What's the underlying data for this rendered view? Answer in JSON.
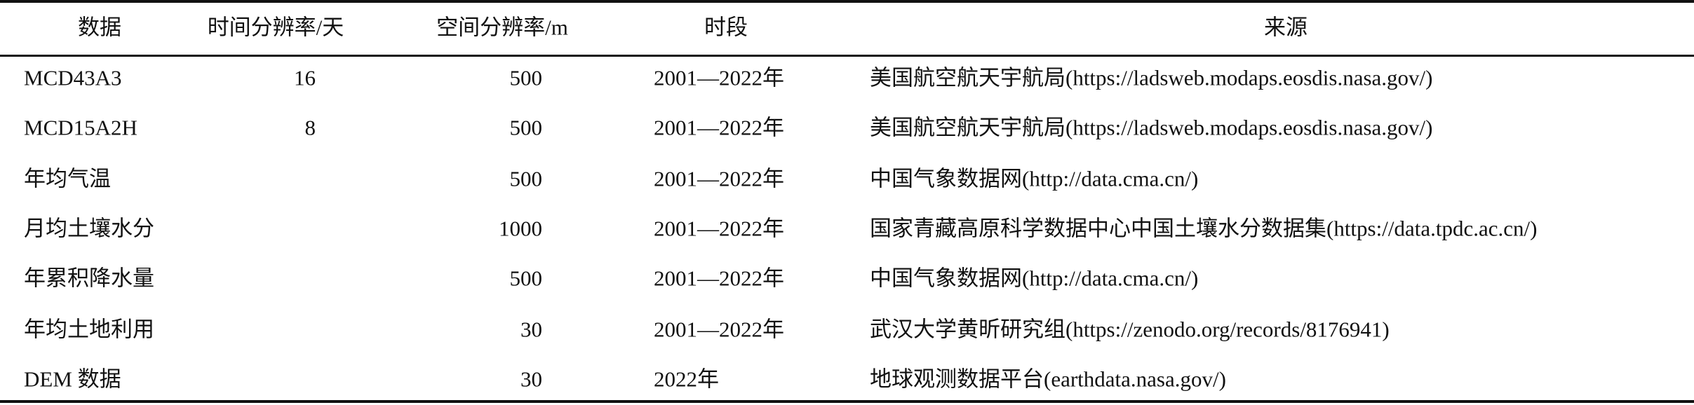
{
  "headers": [
    "数据",
    "时间分辨率/天",
    "空间分辨率/m",
    "时段",
    "来源"
  ],
  "rows": [
    {
      "name": "MCD43A3",
      "temporal": "16",
      "spatial": "500",
      "period": "2001—2022年",
      "source": "美国航空航天宇航局(https://ladsweb.modaps.eosdis.nasa.gov/)"
    },
    {
      "name": "MCD15A2H",
      "temporal": "8",
      "spatial": "500",
      "period": "2001—2022年",
      "source": "美国航空航天宇航局(https://ladsweb.modaps.eosdis.nasa.gov/)"
    },
    {
      "name": "年均气温",
      "temporal": "",
      "spatial": "500",
      "period": "2001—2022年",
      "source": "中国气象数据网(http://data.cma.cn/)"
    },
    {
      "name": "月均土壤水分",
      "temporal": "",
      "spatial": "1000",
      "period": "2001—2022年",
      "source": "国家青藏高原科学数据中心中国土壤水分数据集(https://data.tpdc.ac.cn/)"
    },
    {
      "name": "年累积降水量",
      "temporal": "",
      "spatial": "500",
      "period": "2001—2022年",
      "source": "中国气象数据网(http://data.cma.cn/)"
    },
    {
      "name": "年均土地利用",
      "temporal": "",
      "spatial": "30",
      "period": "2001—2022年",
      "source": "武汉大学黄昕研究组(https://zenodo.org/records/8176941)"
    },
    {
      "name": "DEM 数据",
      "temporal": "",
      "spatial": "30",
      "period": "2022年",
      "source": "地球观测数据平台(earthdata.nasa.gov/)"
    }
  ]
}
